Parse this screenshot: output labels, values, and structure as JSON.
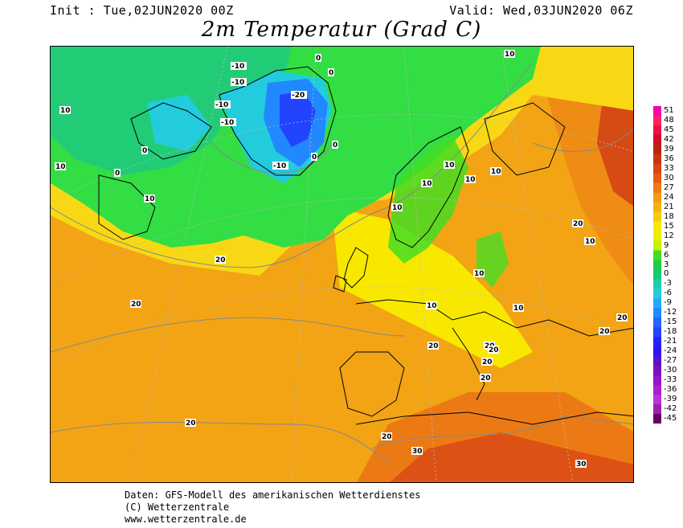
{
  "header": {
    "init": "Init : Tue,02JUN2020 00Z",
    "valid": "Valid: Wed,03JUN2020 06Z",
    "title": "2m Temperatur (Grad C)"
  },
  "footer": {
    "line1": "Daten: GFS-Modell des amerikanischen Wetterdienstes",
    "line2": "(C) Wetterzentrale",
    "line3": "www.wetterzentrale.de"
  },
  "legend": {
    "values": [
      "51",
      "48",
      "45",
      "42",
      "39",
      "36",
      "33",
      "30",
      "27",
      "24",
      "21",
      "18",
      "15",
      "12",
      "9",
      "6",
      "3",
      "0",
      "-3",
      "-6",
      "-9",
      "-12",
      "-15",
      "-18",
      "-21",
      "-24",
      "-27",
      "-30",
      "-33",
      "-36",
      "-39",
      "-42",
      "-45"
    ],
    "colors": [
      "#ff00aa",
      "#ff2266",
      "#ee1144",
      "#cc1122",
      "#bb2211",
      "#cc3311",
      "#dd4411",
      "#e65a14",
      "#ee7a14",
      "#f29a14",
      "#f5b014",
      "#f8c814",
      "#f8e800",
      "#e8f000",
      "#c8f000",
      "#44dd22",
      "#22cc44",
      "#11cc77",
      "#22ccaa",
      "#22ccdd",
      "#22aaff",
      "#2288ff",
      "#2266ff",
      "#2244ff",
      "#2222ff",
      "#3311ee",
      "#5511cc",
      "#7711bb",
      "#9911cc",
      "#aa22cc",
      "#bb33dd",
      "#9922aa",
      "#660066"
    ]
  },
  "isotherm_labels": [
    {
      "t": "10"
    },
    {
      "t": "10"
    },
    {
      "t": "0"
    },
    {
      "t": "0"
    },
    {
      "t": "10"
    },
    {
      "t": "10"
    },
    {
      "t": "-10"
    },
    {
      "t": "-10"
    },
    {
      "t": "-10"
    },
    {
      "t": "-20"
    },
    {
      "t": "0"
    },
    {
      "t": "0"
    },
    {
      "t": "-10"
    },
    {
      "t": "-10"
    },
    {
      "t": "0"
    },
    {
      "t": "0"
    },
    {
      "t": "10"
    },
    {
      "t": "10"
    },
    {
      "t": "10"
    },
    {
      "t": "10"
    },
    {
      "t": "10"
    },
    {
      "t": "10"
    },
    {
      "t": "10"
    },
    {
      "t": "10"
    },
    {
      "t": "10"
    },
    {
      "t": "20"
    },
    {
      "t": "20"
    },
    {
      "t": "20"
    },
    {
      "t": "20"
    },
    {
      "t": "20"
    },
    {
      "t": "20"
    },
    {
      "t": "20"
    },
    {
      "t": "20"
    },
    {
      "t": "20"
    },
    {
      "t": "20"
    },
    {
      "t": "20"
    },
    {
      "t": "20"
    },
    {
      "t": "30"
    },
    {
      "t": "30"
    }
  ]
}
